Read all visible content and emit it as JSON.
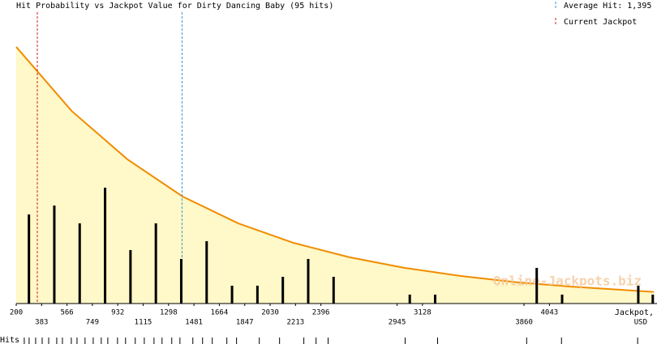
{
  "chart_data": {
    "type": "bar",
    "title": "Hit Probability vs Jackpot Value for Dirty Dancing Baby (95 hits)",
    "x": [
      291.5,
      474.5,
      657.5,
      840.5,
      1023.5,
      1206.5,
      1389.5,
      1572.5,
      1755.5,
      1938.5,
      2121.5,
      2304.5,
      2487.5,
      3036.5,
      3219.5,
      3951.5,
      4134.5,
      4683.5,
      4788
    ],
    "values": [
      10,
      11,
      9,
      13,
      6,
      9,
      5,
      7,
      2,
      2,
      3,
      5,
      3,
      1,
      1,
      4,
      1,
      2,
      1
    ],
    "color": "#000000",
    "xlim": [
      200,
      4795
    ],
    "xticks": [
      200,
      383,
      566,
      749,
      932,
      1115,
      1298,
      1481,
      1664,
      1847,
      2030,
      2213,
      2396,
      2945,
      3128,
      3860,
      4043
    ],
    "ylim": [
      0,
      32.7
    ],
    "x_label": "Jackpot,",
    "x_unit": "USD",
    "curve": {
      "color": "#f08c00",
      "fill": "#fff8c8",
      "x": [
        200,
        600,
        1000,
        1400,
        1800,
        2200,
        2600,
        3000,
        3400,
        3800,
        4200,
        4600,
        4795
      ],
      "values": [
        28.8,
        21.6,
        16.2,
        12.0,
        9.0,
        6.8,
        5.2,
        4.0,
        3.1,
        2.4,
        1.9,
        1.5,
        1.3
      ]
    },
    "reference_lines": [
      {
        "name": "Average Hit: 1,395",
        "value": 1395,
        "color": "#3399cc"
      },
      {
        "name": "Current Jackpot",
        "value": 352,
        "color": "#cc2222"
      }
    ],
    "rug_label": "Hits",
    "rug": [
      258,
      293,
      340,
      387,
      434,
      492,
      533,
      597,
      638,
      696,
      755,
      813,
      860,
      930,
      988,
      1058,
      1123,
      1193,
      1251,
      1321,
      1380,
      1473,
      1543,
      1613,
      1718,
      1788,
      1952,
      2098,
      2273,
      2361,
      2448,
      3003,
      3237,
      3879,
      4130,
      4679
    ],
    "watermark": "Online-Jackpots.biz"
  }
}
